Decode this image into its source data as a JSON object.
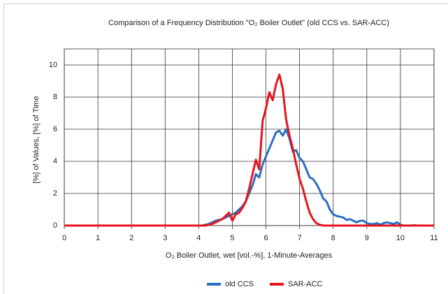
{
  "chart_data": {
    "type": "line",
    "title": "Comparison of a Frequency Distribution \"O₂ Boiler Outlet\" (old CCS vs. SAR-ACC)",
    "x_label": "O₂ Boiler Outlet, wet [vol.-%], 1-Minute-Averages",
    "y_label": "[%] of Values, [%] of Time",
    "x": [
      0,
      4.0,
      4.1,
      4.2,
      4.3,
      4.4,
      4.5,
      4.6,
      4.7,
      4.8,
      4.9,
      5.0,
      5.1,
      5.2,
      5.3,
      5.4,
      5.5,
      5.6,
      5.7,
      5.8,
      5.9,
      6.0,
      6.1,
      6.2,
      6.3,
      6.4,
      6.5,
      6.6,
      6.7,
      6.8,
      6.9,
      7.0,
      7.1,
      7.2,
      7.3,
      7.4,
      7.5,
      7.6,
      7.7,
      7.8,
      7.9,
      8.0,
      8.1,
      8.2,
      8.3,
      8.4,
      8.5,
      8.6,
      8.7,
      8.8,
      8.9,
      9.0,
      9.1,
      9.2,
      9.3,
      9.4,
      9.5,
      9.6,
      9.7,
      9.8,
      9.9,
      10.0,
      10.1,
      10.2,
      10.3,
      10.4,
      10.5,
      11
    ],
    "series": [
      {
        "name": "old CCS",
        "color": "#2a70c0",
        "values": [
          0,
          0,
          0,
          0.05,
          0.1,
          0.2,
          0.3,
          0.35,
          0.4,
          0.5,
          0.6,
          0.7,
          0.8,
          1.0,
          1.2,
          1.5,
          2.0,
          2.5,
          3.2,
          3.0,
          3.8,
          4.3,
          4.8,
          5.3,
          5.8,
          5.9,
          5.6,
          6.0,
          5.4,
          4.6,
          4.7,
          4.2,
          4.0,
          3.5,
          3.0,
          2.9,
          2.6,
          2.2,
          1.7,
          1.5,
          1.0,
          0.7,
          0.6,
          0.55,
          0.5,
          0.35,
          0.4,
          0.3,
          0.2,
          0.3,
          0.3,
          0.15,
          0.1,
          0.1,
          0.15,
          0.05,
          0.15,
          0.2,
          0.15,
          0.1,
          0.2,
          0.05,
          0,
          0,
          0,
          0.02,
          0,
          0
        ]
      },
      {
        "name": "SAR-ACC",
        "color": "#e8141c",
        "values": [
          0,
          0,
          0,
          0,
          0.05,
          0.1,
          0.2,
          0.3,
          0.4,
          0.6,
          0.8,
          0.3,
          0.7,
          0.8,
          1.1,
          1.5,
          2.3,
          3.2,
          4.1,
          3.5,
          6.5,
          7.3,
          8.3,
          7.8,
          8.8,
          9.4,
          8.5,
          6.6,
          5.6,
          4.8,
          3.8,
          2.9,
          2.3,
          1.5,
          0.8,
          0.4,
          0.15,
          0.05,
          0,
          0,
          0,
          0,
          0,
          0,
          0,
          0,
          0,
          0,
          0,
          0,
          0,
          0,
          0,
          0,
          0,
          0,
          0,
          0,
          0,
          0,
          0,
          0,
          0,
          0,
          0,
          0,
          0,
          0
        ]
      }
    ],
    "xlim": [
      0,
      11
    ],
    "xticks": [
      0,
      1,
      2,
      3,
      4,
      5,
      6,
      7,
      8,
      9,
      10,
      11
    ],
    "ylim": [
      0,
      11
    ],
    "yticks": [
      0,
      2,
      4,
      6,
      8,
      10
    ],
    "grid": true,
    "legend": "bottom"
  }
}
